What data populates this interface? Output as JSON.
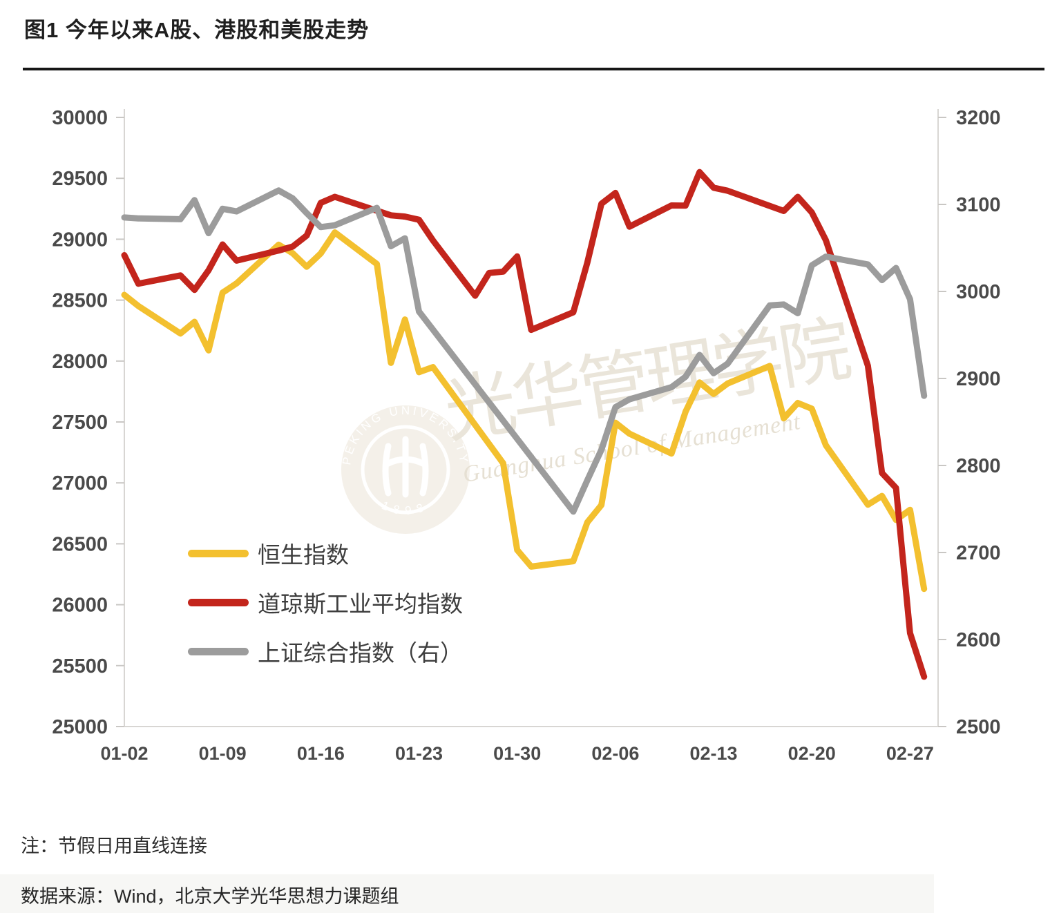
{
  "page": {
    "title": "图1 今年以来A股、港股和美股走势",
    "note": "注：节假日用直线连接",
    "source": "数据来源：Wind，北京大学光华思想力课题组"
  },
  "watermark": {
    "seal_text": "PEKING UNIVERSITY",
    "seal_year": "1898",
    "cn": "光华管理学院",
    "en": "Guanghua School of Management"
  },
  "chart_data": {
    "type": "line",
    "title": "图1 今年以来A股、港股和美股走势",
    "grid": false,
    "legend_position": "inside-left",
    "x_tick_labels": [
      "01-02",
      "01-09",
      "01-16",
      "01-23",
      "01-30",
      "02-06",
      "02-13",
      "02-20",
      "02-27"
    ],
    "x_tick_days": [
      0,
      7,
      14,
      21,
      28,
      35,
      42,
      49,
      56
    ],
    "x_domain_days": [
      0,
      58
    ],
    "left_axis": {
      "min": 25000,
      "max": 30000,
      "step": 500,
      "ticks": [
        30000,
        29500,
        29000,
        28500,
        28000,
        27500,
        27000,
        26500,
        26000,
        25500,
        25000
      ]
    },
    "right_axis": {
      "min": 2500,
      "max": 3200,
      "step": 100,
      "ticks": [
        3200,
        3100,
        3000,
        2900,
        2800,
        2700,
        2600,
        2500
      ]
    },
    "series": [
      {
        "id": "hang-seng",
        "name": "恒生指数",
        "axis": "left",
        "color": "#F3C02F",
        "points": [
          [
            "01-02",
            28543
          ],
          [
            "01-03",
            28452
          ],
          [
            "01-06",
            28226
          ],
          [
            "01-07",
            28322
          ],
          [
            "01-08",
            28088
          ],
          [
            "01-09",
            28561
          ],
          [
            "01-10",
            28638
          ],
          [
            "01-13",
            28955
          ],
          [
            "01-14",
            28885
          ],
          [
            "01-15",
            28774
          ],
          [
            "01-16",
            28883
          ],
          [
            "01-17",
            29056
          ],
          [
            "01-20",
            28796
          ],
          [
            "01-21",
            27985
          ],
          [
            "01-22",
            28341
          ],
          [
            "01-23",
            27909
          ],
          [
            "01-24",
            27950
          ],
          [
            "01-29",
            27161
          ],
          [
            "01-30",
            26449
          ],
          [
            "01-31",
            26313
          ],
          [
            "02-03",
            26357
          ],
          [
            "02-04",
            26676
          ],
          [
            "02-05",
            26818
          ],
          [
            "02-06",
            27494
          ],
          [
            "02-07",
            27404
          ],
          [
            "02-10",
            27241
          ],
          [
            "02-11",
            27584
          ],
          [
            "02-12",
            27824
          ],
          [
            "02-13",
            27730
          ],
          [
            "02-14",
            27816
          ],
          [
            "02-17",
            27960
          ],
          [
            "02-18",
            27530
          ],
          [
            "02-19",
            27656
          ],
          [
            "02-20",
            27609
          ],
          [
            "02-21",
            27309
          ],
          [
            "02-24",
            26821
          ],
          [
            "02-25",
            26893
          ],
          [
            "02-26",
            26696
          ],
          [
            "02-27",
            26779
          ],
          [
            "02-28",
            26130
          ]
        ]
      },
      {
        "id": "dow-jones",
        "name": "道琼斯工业平均指数",
        "axis": "left",
        "color": "#C3251C",
        "points": [
          [
            "01-02",
            28869
          ],
          [
            "01-03",
            28635
          ],
          [
            "01-06",
            28703
          ],
          [
            "01-07",
            28584
          ],
          [
            "01-08",
            28745
          ],
          [
            "01-09",
            28957
          ],
          [
            "01-10",
            28824
          ],
          [
            "01-13",
            28907
          ],
          [
            "01-14",
            28940
          ],
          [
            "01-15",
            29030
          ],
          [
            "01-16",
            29298
          ],
          [
            "01-17",
            29348
          ],
          [
            "01-21",
            29196
          ],
          [
            "01-22",
            29186
          ],
          [
            "01-23",
            29160
          ],
          [
            "01-24",
            28990
          ],
          [
            "01-27",
            28536
          ],
          [
            "01-28",
            28723
          ],
          [
            "01-29",
            28734
          ],
          [
            "01-30",
            28859
          ],
          [
            "01-31",
            28256
          ],
          [
            "02-03",
            28400
          ],
          [
            "02-04",
            28808
          ],
          [
            "02-05",
            29291
          ],
          [
            "02-06",
            29380
          ],
          [
            "02-07",
            29103
          ],
          [
            "02-10",
            29277
          ],
          [
            "02-11",
            29276
          ],
          [
            "02-12",
            29551
          ],
          [
            "02-13",
            29423
          ],
          [
            "02-14",
            29398
          ],
          [
            "02-18",
            29232
          ],
          [
            "02-19",
            29348
          ],
          [
            "02-20",
            29220
          ],
          [
            "02-21",
            28992
          ],
          [
            "02-24",
            27961
          ],
          [
            "02-25",
            27081
          ],
          [
            "02-26",
            26958
          ],
          [
            "02-27",
            25767
          ],
          [
            "02-28",
            25409
          ]
        ]
      },
      {
        "id": "shanghai-composite",
        "name": "上证综合指数（右）",
        "axis": "right",
        "color": "#9C9C9C",
        "points": [
          [
            "01-02",
            3085
          ],
          [
            "01-03",
            3084
          ],
          [
            "01-06",
            3083
          ],
          [
            "01-07",
            3105
          ],
          [
            "01-08",
            3067
          ],
          [
            "01-09",
            3095
          ],
          [
            "01-10",
            3092
          ],
          [
            "01-13",
            3116
          ],
          [
            "01-14",
            3107
          ],
          [
            "01-15",
            3090
          ],
          [
            "01-16",
            3074
          ],
          [
            "01-17",
            3076
          ],
          [
            "01-20",
            3096
          ],
          [
            "01-21",
            3052
          ],
          [
            "01-22",
            3061
          ],
          [
            "01-23",
            2977
          ],
          [
            "02-03",
            2747
          ],
          [
            "02-04",
            2783
          ],
          [
            "02-05",
            2818
          ],
          [
            "02-06",
            2867
          ],
          [
            "02-07",
            2876
          ],
          [
            "02-10",
            2890
          ],
          [
            "02-11",
            2902
          ],
          [
            "02-12",
            2927
          ],
          [
            "02-13",
            2906
          ],
          [
            "02-14",
            2917
          ],
          [
            "02-17",
            2984
          ],
          [
            "02-18",
            2985
          ],
          [
            "02-19",
            2975
          ],
          [
            "02-20",
            3030
          ],
          [
            "02-21",
            3040
          ],
          [
            "02-24",
            3031
          ],
          [
            "02-25",
            3013
          ],
          [
            "02-26",
            3027
          ],
          [
            "02-27",
            2991
          ],
          [
            "02-28",
            2880
          ]
        ]
      }
    ]
  }
}
